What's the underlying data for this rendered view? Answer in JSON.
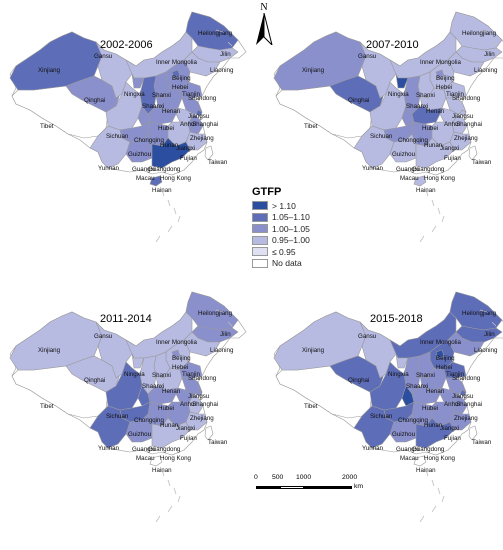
{
  "panels": [
    {
      "id": "p1",
      "title": "2002-2006"
    },
    {
      "id": "p2",
      "title": "2007-2010"
    },
    {
      "id": "p3",
      "title": "2011-2014"
    },
    {
      "id": "p4",
      "title": "2015-2018"
    }
  ],
  "legend": {
    "title": "GTFP",
    "items": [
      {
        "label": "> 1.10",
        "color": "#2c4ea0"
      },
      {
        "label": "1.05–1.10",
        "color": "#5d6db8"
      },
      {
        "label": "1.00–1.05",
        "color": "#8a90cc"
      },
      {
        "label": "0.95–1.00",
        "color": "#b7bbe1"
      },
      {
        "label": "≤ 0.95",
        "color": "#dfe1f2"
      },
      {
        "label": "No data",
        "color": "#ffffff"
      }
    ]
  },
  "north_label": "N",
  "scale": {
    "ticks": [
      "0",
      "500",
      "1000",
      "2000"
    ],
    "unit": "km"
  },
  "province_labels": [
    "Heilongjiang",
    "Xinjiang",
    "Jilin",
    "Inner Mongolia",
    "Liaoning",
    "Gansu",
    "Beijing",
    "Hebei",
    "Tianjin",
    "Qinghai",
    "Ningxia",
    "Shanxi",
    "Shandong",
    "Tibet",
    "Shaanxi",
    "Henan",
    "Jiangsu",
    "Anhui",
    "Shanghai",
    "Sichuan",
    "Hubei",
    "Chongqing",
    "Zhejiang",
    "Hunan",
    "Jiangxi",
    "Guizhou",
    "Fujian",
    "Taiwan",
    "Yunnan",
    "Guangxi",
    "Guangdong",
    "Macau",
    "Hong Kong",
    "Hainan"
  ]
}
